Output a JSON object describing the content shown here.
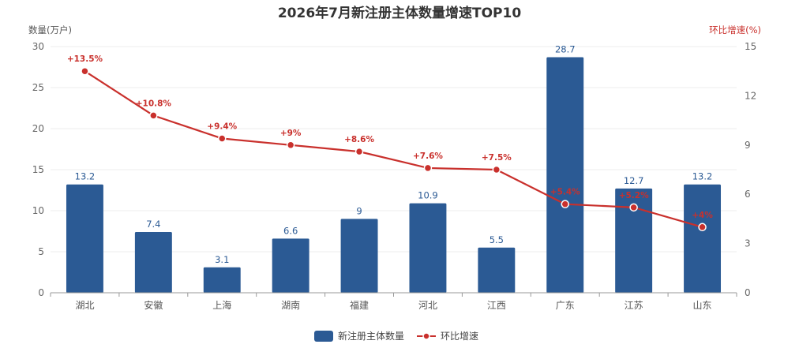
{
  "chart_data": {
    "type": "bar",
    "title": "2026年7月新注册主体数量增速TOP10",
    "left_axis_name": "数量(万户)",
    "right_axis_name": "环比增速(%)",
    "categories": [
      "湖北",
      "安徽",
      "上海",
      "湖南",
      "福建",
      "河北",
      "江西",
      "广东",
      "江苏",
      "山东"
    ],
    "left_ylim": [
      0,
      30
    ],
    "left_ticks": [
      "0",
      "5",
      "10",
      "15",
      "20",
      "25",
      "30"
    ],
    "right_ylim": [
      0,
      15
    ],
    "right_ticks": [
      "0",
      "3",
      "6",
      "9",
      "12",
      "15"
    ],
    "grid": true,
    "series": [
      {
        "name": "新注册主体数量",
        "type": "bar",
        "axis": "left",
        "color": "#2b5a94",
        "values": [
          13.2,
          7.4,
          3.1,
          6.6,
          9,
          10.9,
          5.5,
          28.7,
          12.7,
          13.2
        ],
        "labels": [
          "13.2",
          "7.4",
          "3.1",
          "6.6",
          "9",
          "10.9",
          "5.5",
          "28.7",
          "12.7",
          "13.2"
        ]
      },
      {
        "name": "环比增速",
        "type": "line",
        "axis": "right",
        "color": "#c9302c",
        "values": [
          13.5,
          10.8,
          9.4,
          9,
          8.6,
          7.6,
          7.5,
          5.4,
          5.2,
          4
        ],
        "labels": [
          "+13.5%",
          "+10.8%",
          "+9.4%",
          "+9%",
          "+8.6%",
          "+7.6%",
          "+7.5%",
          "+5.4%",
          "+5.2%",
          "+4%"
        ]
      }
    ],
    "legend_position": "bottom-center"
  }
}
